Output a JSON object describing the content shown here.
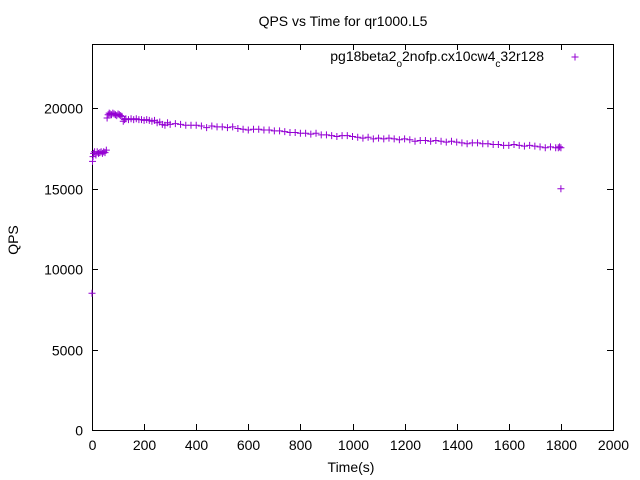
{
  "chart_data": {
    "type": "scatter",
    "title": "QPS vs Time for qr1000.L5",
    "xlabel": "Time(s)",
    "ylabel": "QPS",
    "xlim": [
      0,
      2000
    ],
    "ylim": [
      0,
      24000
    ],
    "xticks": [
      0,
      200,
      400,
      600,
      800,
      1000,
      1200,
      1400,
      1600,
      1800,
      2000
    ],
    "yticks": [
      0,
      5000,
      10000,
      15000,
      20000
    ],
    "grid": false,
    "legend_position": "top-right",
    "marker": "+",
    "series": [
      {
        "name_parts": [
          "pg18beta2",
          "o",
          "2nofp.cx10cw4",
          "c",
          "32r128"
        ],
        "color": "#9400d3",
        "points": [
          [
            0,
            8500
          ],
          [
            2,
            16700
          ],
          [
            4,
            17000
          ],
          [
            6,
            17200
          ],
          [
            10,
            17300
          ],
          [
            15,
            17100
          ],
          [
            20,
            17300
          ],
          [
            25,
            17200
          ],
          [
            30,
            17250
          ],
          [
            35,
            17300
          ],
          [
            40,
            17200
          ],
          [
            45,
            17300
          ],
          [
            50,
            17250
          ],
          [
            55,
            17400
          ],
          [
            58,
            19400
          ],
          [
            62,
            19600
          ],
          [
            66,
            19700
          ],
          [
            70,
            19650
          ],
          [
            75,
            19600
          ],
          [
            80,
            19700
          ],
          [
            85,
            19650
          ],
          [
            90,
            19600
          ],
          [
            95,
            19550
          ],
          [
            100,
            19650
          ],
          [
            105,
            19600
          ],
          [
            110,
            19550
          ],
          [
            115,
            19500
          ],
          [
            120,
            19200
          ],
          [
            125,
            19300
          ],
          [
            130,
            19350
          ],
          [
            140,
            19300
          ],
          [
            150,
            19350
          ],
          [
            160,
            19300
          ],
          [
            170,
            19350
          ],
          [
            180,
            19300
          ],
          [
            190,
            19300
          ],
          [
            200,
            19250
          ],
          [
            210,
            19300
          ],
          [
            220,
            19250
          ],
          [
            230,
            19200
          ],
          [
            240,
            19250
          ],
          [
            250,
            19100
          ],
          [
            260,
            19150
          ],
          [
            270,
            19000
          ],
          [
            280,
            18950
          ],
          [
            290,
            19100
          ],
          [
            300,
            19000
          ],
          [
            320,
            19050
          ],
          [
            340,
            19000
          ],
          [
            360,
            18950
          ],
          [
            380,
            18950
          ],
          [
            400,
            18950
          ],
          [
            420,
            18900
          ],
          [
            440,
            18800
          ],
          [
            460,
            18900
          ],
          [
            480,
            18850
          ],
          [
            500,
            18850
          ],
          [
            520,
            18800
          ],
          [
            540,
            18850
          ],
          [
            560,
            18750
          ],
          [
            580,
            18700
          ],
          [
            600,
            18650
          ],
          [
            620,
            18700
          ],
          [
            640,
            18700
          ],
          [
            660,
            18650
          ],
          [
            680,
            18650
          ],
          [
            700,
            18600
          ],
          [
            720,
            18600
          ],
          [
            740,
            18550
          ],
          [
            760,
            18500
          ],
          [
            780,
            18500
          ],
          [
            800,
            18450
          ],
          [
            820,
            18450
          ],
          [
            840,
            18400
          ],
          [
            860,
            18450
          ],
          [
            880,
            18350
          ],
          [
            900,
            18350
          ],
          [
            920,
            18300
          ],
          [
            940,
            18250
          ],
          [
            960,
            18300
          ],
          [
            980,
            18300
          ],
          [
            1000,
            18250
          ],
          [
            1020,
            18200
          ],
          [
            1040,
            18150
          ],
          [
            1060,
            18200
          ],
          [
            1080,
            18100
          ],
          [
            1100,
            18150
          ],
          [
            1120,
            18100
          ],
          [
            1140,
            18150
          ],
          [
            1160,
            18100
          ],
          [
            1180,
            18050
          ],
          [
            1200,
            18100
          ],
          [
            1220,
            18050
          ],
          [
            1240,
            17950
          ],
          [
            1260,
            18000
          ],
          [
            1280,
            18000
          ],
          [
            1300,
            17950
          ],
          [
            1320,
            18000
          ],
          [
            1340,
            17950
          ],
          [
            1360,
            17900
          ],
          [
            1380,
            17950
          ],
          [
            1400,
            17900
          ],
          [
            1420,
            17850
          ],
          [
            1440,
            17800
          ],
          [
            1460,
            17850
          ],
          [
            1480,
            17850
          ],
          [
            1500,
            17800
          ],
          [
            1520,
            17800
          ],
          [
            1540,
            17750
          ],
          [
            1560,
            17750
          ],
          [
            1580,
            17700
          ],
          [
            1600,
            17700
          ],
          [
            1620,
            17750
          ],
          [
            1640,
            17700
          ],
          [
            1660,
            17650
          ],
          [
            1680,
            17700
          ],
          [
            1700,
            17650
          ],
          [
            1720,
            17600
          ],
          [
            1740,
            17550
          ],
          [
            1760,
            17600
          ],
          [
            1780,
            17550
          ],
          [
            1790,
            17550
          ],
          [
            1795,
            17600
          ],
          [
            1800,
            17550
          ],
          [
            1800,
            15000
          ]
        ]
      }
    ]
  }
}
